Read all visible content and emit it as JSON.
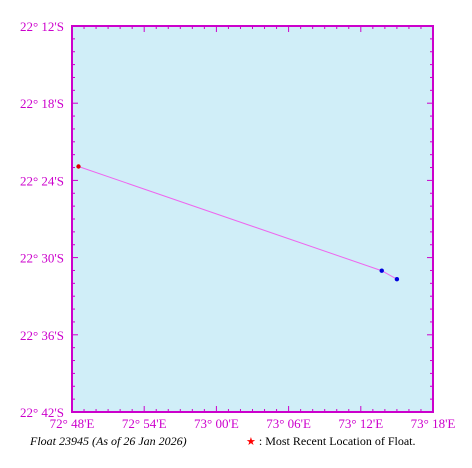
{
  "map": {
    "lon_range": [
      72.8,
      73.3
    ],
    "lat_range": [
      -22.7,
      -22.2
    ],
    "lon_ticks": [
      {
        "value": 72.8,
        "label": "72° 48'E"
      },
      {
        "value": 72.9,
        "label": "72° 54'E"
      },
      {
        "value": 73.0,
        "label": "73° 00'E"
      },
      {
        "value": 73.1,
        "label": "73° 06'E"
      },
      {
        "value": 73.2,
        "label": "73° 12'E"
      },
      {
        "value": 73.3,
        "label": "73° 18'E"
      }
    ],
    "lat_ticks": [
      {
        "value": -22.2,
        "label": "22° 12'S"
      },
      {
        "value": -22.3,
        "label": "22° 18'S"
      },
      {
        "value": -22.4,
        "label": "22° 24'S"
      },
      {
        "value": -22.5,
        "label": "22° 30'S"
      },
      {
        "value": -22.6,
        "label": "22° 36'S"
      },
      {
        "value": -22.7,
        "label": "22° 42'S"
      }
    ],
    "track": [
      {
        "lon": 72.809,
        "lat": -22.382,
        "recent": true
      },
      {
        "lon": 73.229,
        "lat": -22.517,
        "recent": false
      },
      {
        "lon": 73.25,
        "lat": -22.528,
        "recent": false
      }
    ],
    "colors": {
      "ocean": "#d0eef8",
      "frame": "#cc00cc",
      "track": "#ee66ee",
      "recent_point": "#dd0000",
      "point": "#0000dd"
    }
  },
  "caption": {
    "float_text": "Float 23945 (As of 26 Jan 2026)",
    "legend_text": ": Most Recent Location of Float."
  }
}
